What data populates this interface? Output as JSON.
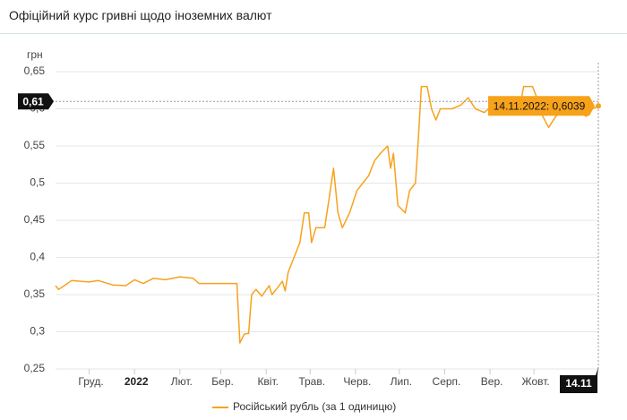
{
  "header": {
    "title": "Офіційний курс гривні щодо іноземних валют"
  },
  "chart_data": {
    "type": "line",
    "y_label": "грн",
    "x": [
      "2021-11-08",
      "2021-11-10",
      "2021-11-14",
      "2021-11-19",
      "2021-11-25",
      "2021-12-01",
      "2021-12-07",
      "2021-12-17",
      "2021-12-26",
      "2022-01-01",
      "2022-01-07",
      "2022-01-14",
      "2022-01-22",
      "2022-02-01",
      "2022-02-10",
      "2022-02-14",
      "2022-03-12",
      "2022-03-14",
      "2022-03-17",
      "2022-03-20",
      "2022-03-22",
      "2022-03-25",
      "2022-03-29",
      "2022-04-03",
      "2022-04-05",
      "2022-04-09",
      "2022-04-12",
      "2022-04-14",
      "2022-04-16",
      "2022-04-20",
      "2022-04-24",
      "2022-04-27",
      "2022-04-30",
      "2022-05-02",
      "2022-05-05",
      "2022-05-11",
      "2022-05-14",
      "2022-05-17",
      "2022-05-20",
      "2022-05-23",
      "2022-05-28",
      "2022-06-02",
      "2022-06-06",
      "2022-06-10",
      "2022-06-14",
      "2022-06-18",
      "2022-06-23",
      "2022-06-25",
      "2022-06-27",
      "2022-06-30",
      "2022-07-05",
      "2022-07-08",
      "2022-07-12",
      "2022-07-14",
      "2022-07-16",
      "2022-07-20",
      "2022-07-23",
      "2022-07-26",
      "2022-07-29",
      "2022-08-06",
      "2022-08-12",
      "2022-08-17",
      "2022-08-22",
      "2022-08-28",
      "2022-09-06",
      "2022-09-15",
      "2022-09-21",
      "2022-09-24",
      "2022-09-30",
      "2022-10-03",
      "2022-10-07",
      "2022-10-11",
      "2022-10-16",
      "2022-10-22",
      "2022-10-31",
      "2022-11-06",
      "2022-11-10",
      "2022-11-14"
    ],
    "series": [
      {
        "name": "Російський рубль (за 1 одиницю)",
        "color": "#f7a21b",
        "values": [
          0.362,
          0.357,
          0.362,
          0.369,
          0.368,
          0.367,
          0.369,
          0.363,
          0.362,
          0.37,
          0.365,
          0.372,
          0.37,
          0.374,
          0.372,
          0.365,
          0.365,
          0.285,
          0.297,
          0.298,
          0.35,
          0.357,
          0.348,
          0.362,
          0.35,
          0.36,
          0.368,
          0.355,
          0.38,
          0.4,
          0.42,
          0.46,
          0.46,
          0.42,
          0.44,
          0.44,
          0.48,
          0.52,
          0.46,
          0.44,
          0.46,
          0.49,
          0.5,
          0.51,
          0.53,
          0.54,
          0.55,
          0.52,
          0.54,
          0.47,
          0.46,
          0.49,
          0.5,
          0.56,
          0.63,
          0.63,
          0.6,
          0.585,
          0.6,
          0.6,
          0.605,
          0.615,
          0.6,
          0.595,
          0.61,
          0.61,
          0.6,
          0.63,
          0.63,
          0.615,
          0.59,
          0.575,
          0.59,
          0.6,
          0.595,
          0.59,
          0.6,
          0.6039
        ]
      }
    ],
    "xlim": [
      "2021-11-08",
      "2022-11-14"
    ],
    "xticks": [
      {
        "value": "2021-12-01",
        "label": "Груд."
      },
      {
        "value": "2022-01-01",
        "label": "2022"
      },
      {
        "value": "2022-02-01",
        "label": "Лют."
      },
      {
        "value": "2022-03-01",
        "label": "Бер."
      },
      {
        "value": "2022-04-01",
        "label": "Квіт."
      },
      {
        "value": "2022-05-01",
        "label": "Трав."
      },
      {
        "value": "2022-06-01",
        "label": "Черв."
      },
      {
        "value": "2022-07-01",
        "label": "Лип."
      },
      {
        "value": "2022-08-01",
        "label": "Серп."
      },
      {
        "value": "2022-09-01",
        "label": "Вер."
      },
      {
        "value": "2022-10-01",
        "label": "Жовт."
      }
    ],
    "ylim": [
      0.25,
      0.65
    ],
    "yticks": [
      {
        "value": 0.25,
        "label": "0,25"
      },
      {
        "value": 0.3,
        "label": "0,3"
      },
      {
        "value": 0.35,
        "label": "0,35"
      },
      {
        "value": 0.4,
        "label": "0,4"
      },
      {
        "value": 0.45,
        "label": "0,45"
      },
      {
        "value": 0.5,
        "label": "0,5"
      },
      {
        "value": 0.55,
        "label": "0,55"
      },
      {
        "value": 0.6,
        "label": "0,6"
      },
      {
        "value": 0.65,
        "label": "0,65"
      }
    ],
    "grid": true,
    "legend": "bottom",
    "crosshair_y": {
      "value": 0.61,
      "label": "0,61"
    },
    "crosshair_x": {
      "value": "2022-11-14",
      "label": "14.11"
    },
    "tooltip": "14.11.2022: 0,6039"
  }
}
